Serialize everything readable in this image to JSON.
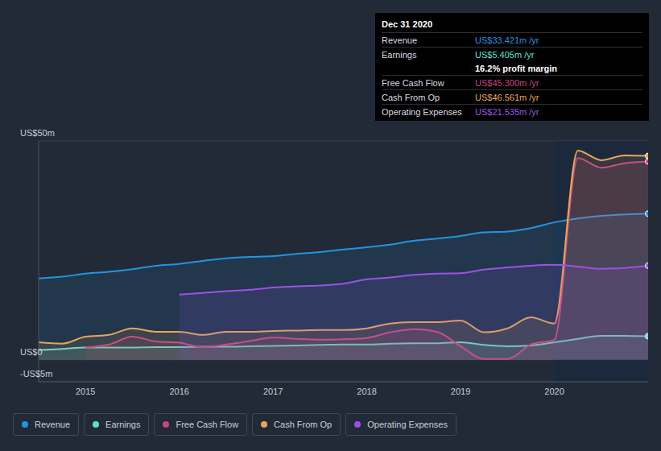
{
  "chart_data": {
    "type": "line",
    "x": [
      2014.5,
      2014.75,
      2015,
      2015.25,
      2015.5,
      2015.75,
      2016,
      2016.25,
      2016.5,
      2016.75,
      2017,
      2017.25,
      2017.5,
      2017.75,
      2018,
      2018.25,
      2018.5,
      2018.75,
      2019,
      2019.25,
      2019.5,
      2019.75,
      2020,
      2020.25,
      2020.5,
      2020.75,
      2021
    ],
    "series": [
      {
        "name": "Revenue",
        "color": "#2394e0",
        "values": [
          18.6,
          19.0,
          19.7,
          20.1,
          20.7,
          21.5,
          21.9,
          22.6,
          23.2,
          23.5,
          23.7,
          24.2,
          24.6,
          25.2,
          25.7,
          26.3,
          27.2,
          27.7,
          28.3,
          29.1,
          29.3,
          30.1,
          31.4,
          32.3,
          32.9,
          33.2,
          33.4
        ]
      },
      {
        "name": "Earnings",
        "color": "#5ee0cc",
        "values": [
          2.2,
          2.5,
          2.8,
          2.8,
          2.8,
          2.9,
          2.9,
          3.0,
          3.0,
          3.1,
          3.2,
          3.3,
          3.4,
          3.5,
          3.5,
          3.7,
          3.8,
          3.8,
          4.0,
          3.4,
          3.1,
          3.3,
          4.0,
          4.8,
          5.5,
          5.5,
          5.4
        ]
      },
      {
        "name": "Free Cash Flow",
        "color": "#c8437f",
        "values": [
          null,
          null,
          2.8,
          3.5,
          5.3,
          4.2,
          3.9,
          2.9,
          3.5,
          4.3,
          5.1,
          4.8,
          4.6,
          4.7,
          5.0,
          6.3,
          7.0,
          6.4,
          3.1,
          0.2,
          0.2,
          3.5,
          4.6,
          46.1,
          43.9,
          44.9,
          45.3
        ]
      },
      {
        "name": "Cash From Op",
        "color": "#e6a65c",
        "values": [
          4.0,
          3.7,
          5.3,
          5.7,
          7.2,
          6.4,
          6.4,
          5.7,
          6.4,
          6.4,
          6.6,
          6.7,
          6.8,
          6.8,
          7.2,
          8.3,
          8.6,
          8.6,
          9.0,
          6.3,
          7.2,
          9.7,
          8.3,
          47.8,
          45.6,
          46.7,
          46.6
        ]
      },
      {
        "name": "Operating Expenses",
        "color": "#9c52e6",
        "values": [
          null,
          null,
          null,
          null,
          null,
          null,
          14.9,
          15.3,
          15.7,
          16.0,
          16.5,
          16.8,
          17.0,
          17.4,
          18.4,
          18.8,
          19.4,
          19.7,
          19.8,
          20.6,
          21.1,
          21.5,
          21.7,
          21.3,
          20.8,
          21.0,
          21.5
        ]
      }
    ],
    "xlim": [
      2014.5,
      2021
    ],
    "xticks": [
      2015,
      2016,
      2017,
      2018,
      2019,
      2020
    ],
    "ylim": [
      -5,
      50
    ],
    "yticks": [
      {
        "value": 50,
        "label": "US$50m"
      },
      {
        "value": 0,
        "label": "US$0"
      },
      {
        "value": -5,
        "label": "-US$5m"
      }
    ],
    "grid": true,
    "annotation": {
      "title": "Dec 31 2020",
      "rows": [
        {
          "label": "Revenue",
          "value": "US$33.421m /yr"
        },
        {
          "label": "Earnings",
          "value": "US$5.405m /yr"
        },
        {
          "value": "16.2% profit margin"
        },
        {
          "label": "Free Cash Flow",
          "value": "US$45.300m /yr"
        },
        {
          "label": "Cash From Op",
          "value": "US$46.561m /yr"
        },
        {
          "label": "Operating Expenses",
          "value": "US$21.535m /yr"
        }
      ]
    }
  }
}
